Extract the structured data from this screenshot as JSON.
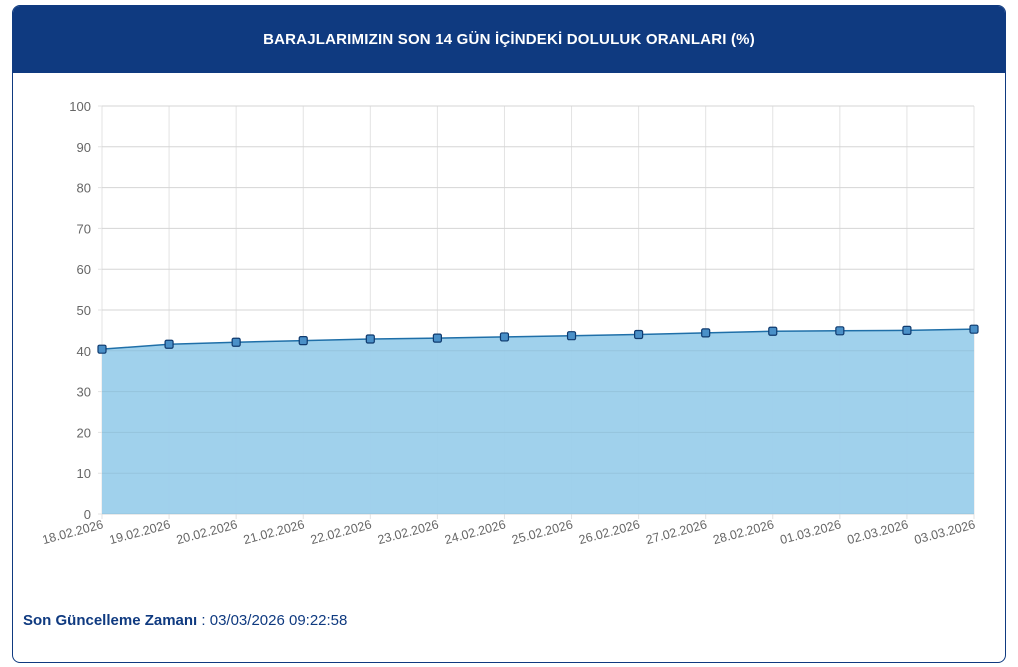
{
  "header": {
    "title": "BARAJLARIMIZIN SON 14 GÜN İÇİNDEKİ DOLULUK ORANLARI (%)"
  },
  "footer": {
    "label": "Son Güncelleme Zamanı",
    "separator": " : ",
    "value": "03/03/2026 09:22:58"
  },
  "chart_data": {
    "type": "area",
    "title": "",
    "xlabel": "",
    "ylabel": "",
    "ylim": [
      0,
      100
    ],
    "yticks": [
      0,
      10,
      20,
      30,
      40,
      50,
      60,
      70,
      80,
      90,
      100
    ],
    "grid": true,
    "categories": [
      "18.02.2026",
      "19.02.2026",
      "20.02.2026",
      "21.02.2026",
      "22.02.2026",
      "23.02.2026",
      "24.02.2026",
      "25.02.2026",
      "26.02.2026",
      "27.02.2026",
      "28.02.2026",
      "01.03.2026",
      "02.03.2026",
      "03.03.2026"
    ],
    "values": [
      40.4,
      41.6,
      42.1,
      42.5,
      42.9,
      43.1,
      43.4,
      43.7,
      44.0,
      44.4,
      44.8,
      44.9,
      45.0,
      45.3
    ],
    "colors": {
      "fill": "#9bcfeb",
      "line": "#1f6fa8",
      "marker": "#4a90c8",
      "header": "#0f3a80"
    }
  }
}
